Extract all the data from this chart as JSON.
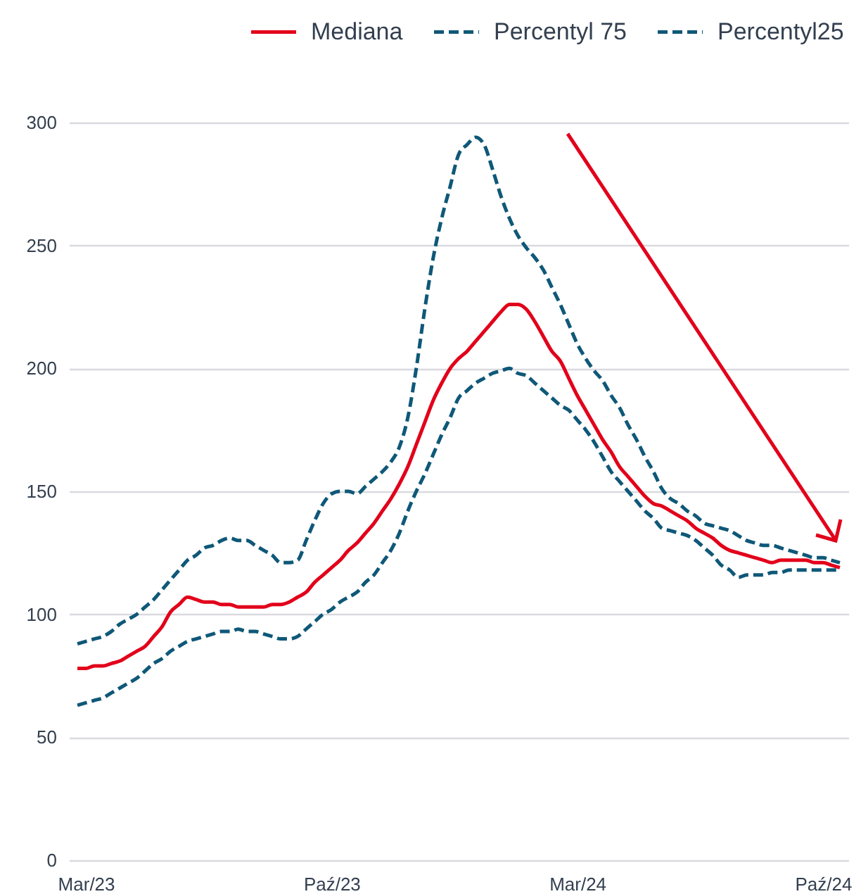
{
  "chart_data": {
    "type": "line",
    "categories": [
      null,
      "Mar/23",
      null,
      null,
      null,
      null,
      null,
      null,
      null,
      null,
      null,
      null,
      null,
      null,
      null,
      null,
      null,
      null,
      null,
      null,
      null,
      null,
      null,
      null,
      null,
      null,
      null,
      null,
      null,
      null,
      "Paź/23",
      null,
      null,
      null,
      null,
      null,
      null,
      null,
      null,
      null,
      null,
      null,
      null,
      null,
      null,
      null,
      null,
      null,
      null,
      null,
      null,
      null,
      null,
      null,
      null,
      null,
      null,
      null,
      null,
      "Mar/24",
      null,
      null,
      null,
      null,
      null,
      null,
      null,
      null,
      null,
      null,
      null,
      null,
      null,
      null,
      null,
      null,
      null,
      null,
      null,
      null,
      null,
      null,
      null,
      null,
      null,
      null,
      null,
      null,
      "Paź/24",
      null,
      null
    ],
    "series": [
      {
        "name": "Mediana",
        "color": "#e2001a",
        "line_style": "solid",
        "values": [
          78,
          78,
          79,
          79,
          80,
          81,
          83,
          85,
          87,
          91,
          95,
          101,
          104,
          107,
          106,
          105,
          105,
          104,
          104,
          103,
          103,
          103,
          103,
          104,
          104,
          105,
          107,
          109,
          113,
          116,
          119,
          122,
          126,
          129,
          133,
          137,
          142,
          147,
          153,
          160,
          169,
          178,
          187,
          194,
          200,
          204,
          207,
          211,
          215,
          219,
          223,
          226,
          226,
          224,
          219,
          213,
          207,
          203,
          196,
          189,
          183,
          177,
          171,
          166,
          160,
          156,
          152,
          148,
          145,
          144,
          142,
          140,
          138,
          135,
          133,
          131,
          128,
          126,
          125,
          124,
          123,
          122,
          121,
          122,
          122,
          122,
          122,
          121,
          121,
          120,
          119
        ]
      },
      {
        "name": "Percentyl 75",
        "color": "#0f5878",
        "line_style": "dashed",
        "values": [
          88,
          89,
          90,
          91,
          93,
          96,
          98,
          100,
          103,
          106,
          110,
          114,
          118,
          122,
          124,
          127,
          128,
          130,
          131,
          130,
          130,
          128,
          126,
          124,
          121,
          121,
          122,
          130,
          138,
          145,
          149,
          150,
          150,
          149,
          152,
          155,
          158,
          162,
          168,
          180,
          200,
          224,
          245,
          261,
          274,
          287,
          291,
          294,
          291,
          281,
          270,
          261,
          254,
          249,
          245,
          240,
          233,
          226,
          218,
          210,
          204,
          199,
          195,
          189,
          184,
          177,
          171,
          164,
          158,
          151,
          147,
          145,
          142,
          140,
          137,
          136,
          135,
          134,
          132,
          130,
          129,
          128,
          128,
          127,
          126,
          125,
          124,
          123,
          123,
          122,
          121
        ]
      },
      {
        "name": "Percentyl25",
        "color": "#0f5878",
        "line_style": "dashed",
        "values": [
          63,
          64,
          65,
          66,
          68,
          70,
          72,
          74,
          77,
          80,
          82,
          85,
          87,
          89,
          90,
          91,
          92,
          93,
          93,
          94,
          93,
          93,
          92,
          91,
          90,
          90,
          91,
          94,
          97,
          100,
          102,
          105,
          107,
          109,
          113,
          116,
          121,
          126,
          133,
          142,
          150,
          157,
          165,
          173,
          180,
          188,
          191,
          194,
          196,
          198,
          199,
          200,
          198,
          197,
          194,
          191,
          188,
          185,
          183,
          179,
          175,
          170,
          164,
          158,
          154,
          150,
          146,
          142,
          139,
          135,
          134,
          133,
          132,
          130,
          127,
          124,
          120,
          118,
          115,
          116,
          116,
          116,
          117,
          117,
          118,
          118,
          118,
          118,
          118,
          118,
          118
        ]
      }
    ],
    "ylim": [
      0,
      300
    ],
    "yticks": [
      0,
      50,
      100,
      150,
      200,
      250,
      300
    ],
    "grid": "y",
    "legend": "top right"
  }
}
